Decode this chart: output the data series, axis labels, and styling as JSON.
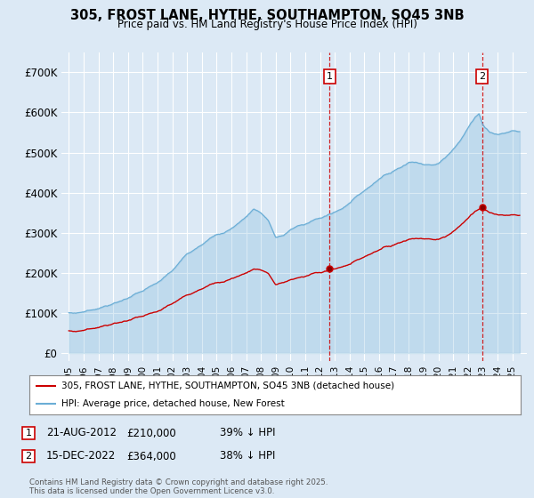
{
  "title": "305, FROST LANE, HYTHE, SOUTHAMPTON, SO45 3NB",
  "subtitle": "Price paid vs. HM Land Registry's House Price Index (HPI)",
  "bg_color": "#dce9f5",
  "plot_bg_color": "#dce9f5",
  "hpi_color": "#6baed6",
  "hpi_fill_color": "#dce9f5",
  "price_color": "#cc0000",
  "grid_color": "#ffffff",
  "ylabel_values": [
    0,
    100000,
    200000,
    300000,
    400000,
    500000,
    600000,
    700000
  ],
  "ylabel_labels": [
    "£0",
    "£100K",
    "£200K",
    "£300K",
    "£400K",
    "£500K",
    "£600K",
    "£700K"
  ],
  "xlim_start": 1994.5,
  "xlim_end": 2026.0,
  "ylim_min": -20000,
  "ylim_max": 750000,
  "transaction1_date": 2012.64,
  "transaction1_price": 210000,
  "transaction2_date": 2022.96,
  "transaction2_price": 364000,
  "legend_line1": "305, FROST LANE, HYTHE, SOUTHAMPTON, SO45 3NB (detached house)",
  "legend_line2": "HPI: Average price, detached house, New Forest",
  "footer": "Contains HM Land Registry data © Crown copyright and database right 2025.\nThis data is licensed under the Open Government Licence v3.0.",
  "xtick_years": [
    1995,
    1996,
    1997,
    1998,
    1999,
    2000,
    2001,
    2002,
    2003,
    2004,
    2005,
    2006,
    2007,
    2008,
    2009,
    2010,
    2011,
    2012,
    2013,
    2014,
    2015,
    2016,
    2017,
    2018,
    2019,
    2020,
    2021,
    2022,
    2023,
    2024,
    2025
  ]
}
